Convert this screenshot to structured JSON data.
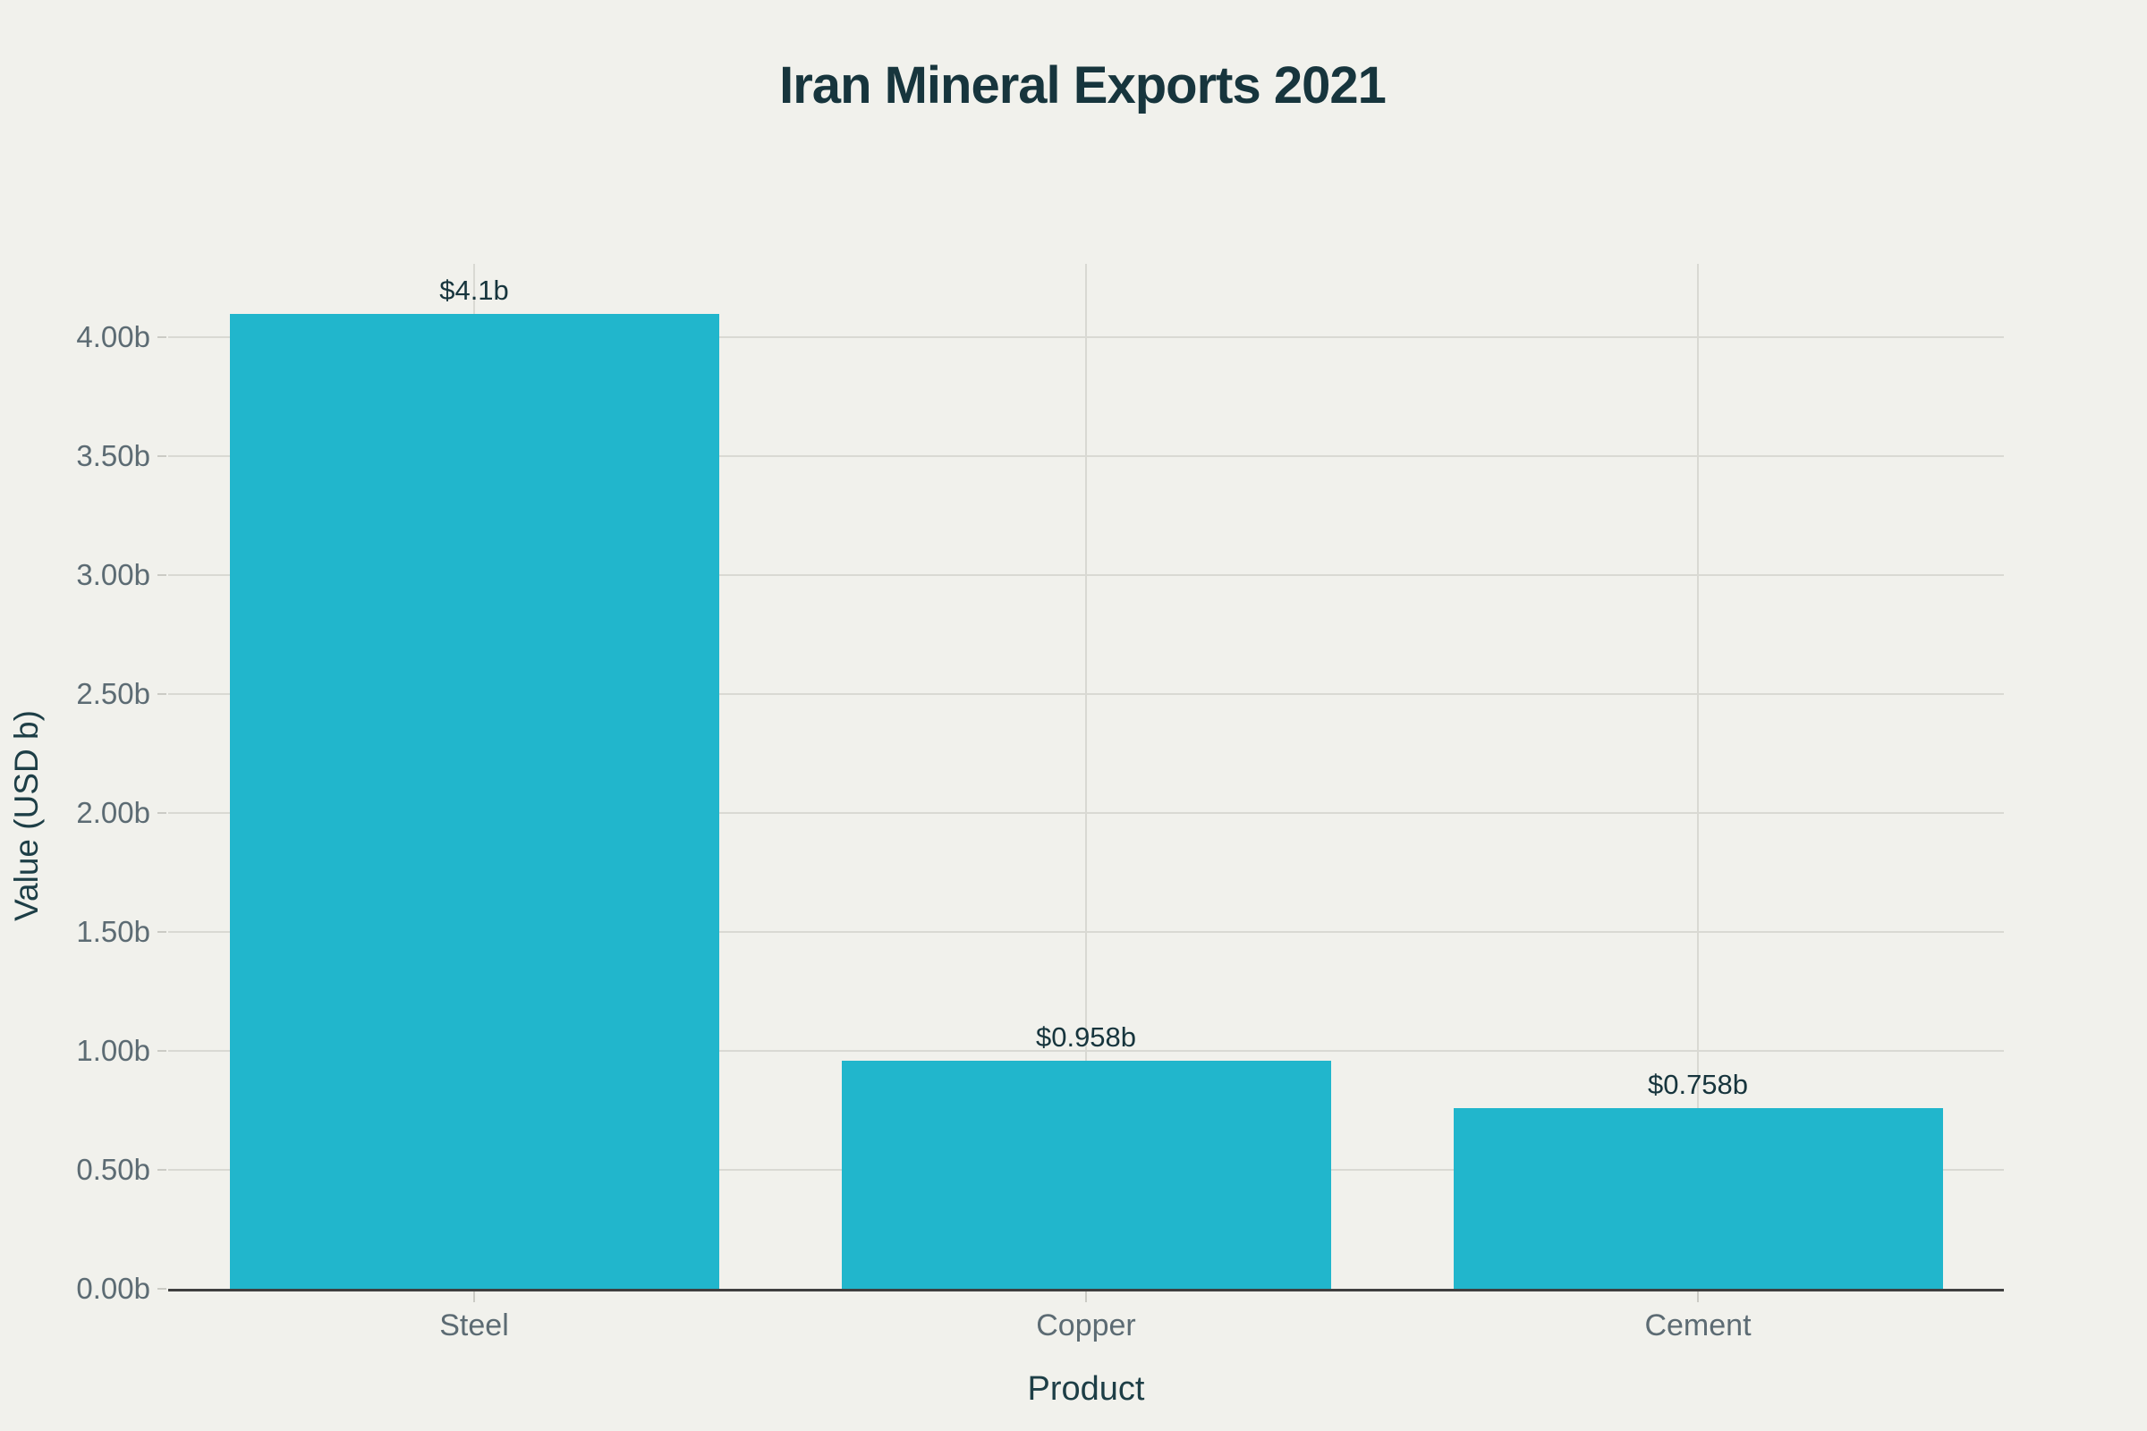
{
  "chart_data": {
    "type": "bar",
    "title": "Iran Mineral Exports 2021",
    "xlabel": "Product",
    "ylabel": "Value (USD b)",
    "categories": [
      "Steel",
      "Copper",
      "Cement"
    ],
    "values": [
      4.1,
      0.958,
      0.758
    ],
    "bar_labels": [
      "$4.1b",
      "$0.958b",
      "$0.758b"
    ],
    "yticks": [
      0,
      0.5,
      1,
      1.5,
      2,
      2.5,
      3,
      3.5,
      4
    ],
    "ytick_labels": [
      "0.00b",
      "0.50b",
      "1.00b",
      "1.50b",
      "2.00b",
      "2.50b",
      "3.00b",
      "3.50b",
      "4.00b"
    ],
    "ylim": [
      0,
      4.31
    ],
    "grid": true,
    "legend": "none",
    "colors": {
      "bar": "#21b6cc",
      "background": "#f1f1ec",
      "gridline": "#d9d9d3",
      "axis_line": "#3f3f3f",
      "title_text": "#17353d",
      "tick_text": "#5c6b73"
    }
  }
}
